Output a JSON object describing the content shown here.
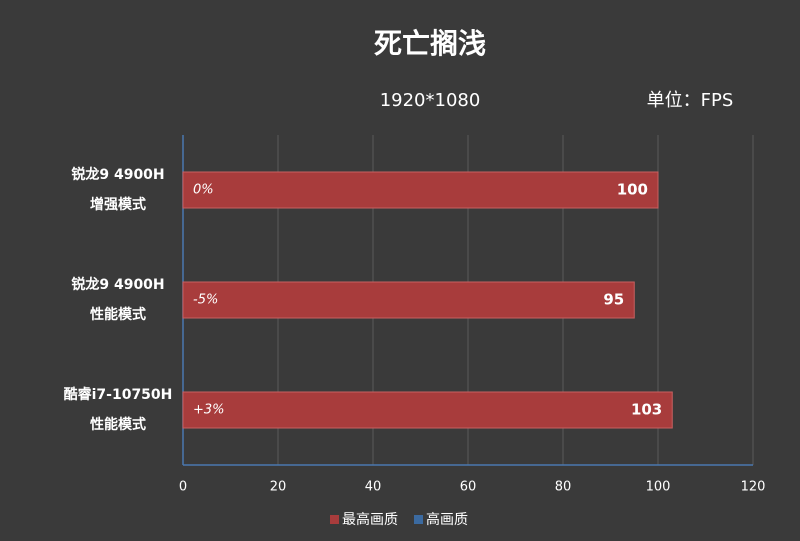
{
  "chart_data": {
    "type": "hbar",
    "title": "死亡搁浅",
    "subtitle": "1920*1080",
    "unit_label": "单位：FPS",
    "categories": [
      [
        "锐龙9 4900H",
        "增强模式"
      ],
      [
        "锐龙9 4900H",
        "性能模式"
      ],
      [
        "酷睿i7-10750H",
        "性能模式"
      ]
    ],
    "series": [
      {
        "name": "最高画质",
        "color": "#a83c3c",
        "values": [
          100,
          95,
          103
        ]
      },
      {
        "name": "高画质",
        "color": "#3b6aa0",
        "values": [
          null,
          null,
          null
        ]
      }
    ],
    "annotations": [
      "0%",
      "-5%",
      "+3%"
    ],
    "xlim": [
      0,
      120
    ],
    "xticks": [
      0,
      20,
      40,
      60,
      80,
      100,
      120
    ],
    "grid": true,
    "legend": "bottom"
  }
}
